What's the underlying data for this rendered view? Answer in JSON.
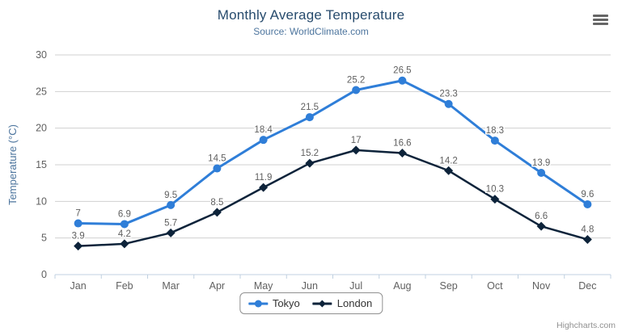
{
  "chart_data": {
    "type": "line",
    "title": "Monthly Average Temperature",
    "subtitle": "Source: WorldClimate.com",
    "categories": [
      "Jan",
      "Feb",
      "Mar",
      "Apr",
      "May",
      "Jun",
      "Jul",
      "Aug",
      "Sep",
      "Oct",
      "Nov",
      "Dec"
    ],
    "series": [
      {
        "name": "Tokyo",
        "color": "#2f7ed8",
        "marker": "circle",
        "values": [
          7,
          6.9,
          9.5,
          14.5,
          18.4,
          21.5,
          25.2,
          26.5,
          23.3,
          18.3,
          13.9,
          9.6
        ]
      },
      {
        "name": "London",
        "color": "#0d233a",
        "marker": "diamond",
        "values": [
          3.9,
          4.2,
          5.7,
          8.5,
          11.9,
          15.2,
          17,
          16.6,
          14.2,
          10.3,
          6.6,
          4.8
        ]
      }
    ],
    "xlabel": "",
    "ylabel": "Temperature (°C)",
    "ylim": [
      0,
      30
    ],
    "yticks": [
      0,
      5,
      10,
      15,
      20,
      25,
      30
    ],
    "grid": true,
    "legend_position": "bottom",
    "data_labels": true
  },
  "credits": "Highcharts.com",
  "icons": {
    "context_menu": "hamburger-icon"
  },
  "colors": {
    "title": "#274b6d",
    "subtitle": "#4d759e",
    "axis_title": "#4d759e",
    "axis_label": "#606060",
    "data_label": "#606060",
    "grid_line": "#d0d0d0",
    "axis_line": "#c0d0e0",
    "legend_border": "#909090",
    "legend_text": "#333333",
    "credits_text": "#909090",
    "menu_icon": "#666666",
    "background": "#ffffff"
  }
}
